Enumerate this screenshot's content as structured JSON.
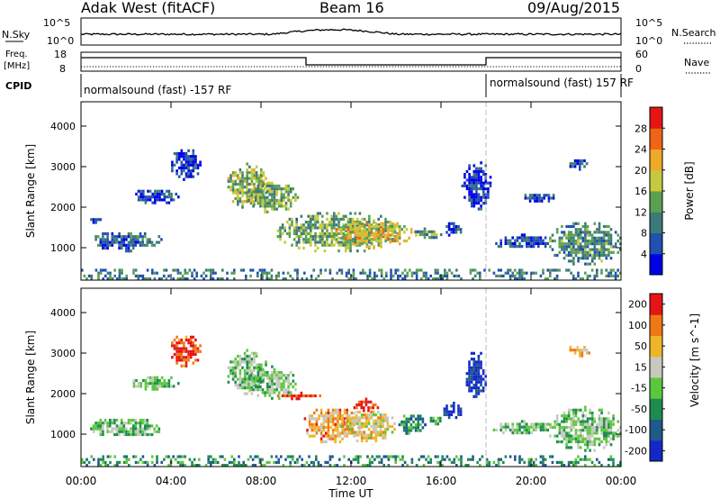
{
  "header": {
    "station": "Adak West (fitACF)",
    "beam": "Beam 16",
    "date": "09/Aug/2015"
  },
  "summary_panels": {
    "nsky_label": "N.Sky",
    "nsky_ticks": [
      "10^5",
      "10^0"
    ],
    "nsearch_label": "N.Search",
    "freq_label_1": "Freq.",
    "freq_label_2": "[MHz]",
    "freq_ticks": [
      "18",
      "8"
    ],
    "nave_label": "Nave",
    "nave_ticks": [
      "60",
      "0"
    ],
    "cpid_label": "CPID",
    "cpid_segments": [
      {
        "label": "normalsound (fast) -157 RF",
        "start_hour": 0,
        "end_hour": 18
      },
      {
        "label": "normalsound (fast) 157 RF",
        "start_hour": 18,
        "end_hour": 24
      }
    ]
  },
  "chart_data": [
    {
      "type": "heatmap",
      "name": "power",
      "ylabel": "Slant Range [km]",
      "xlabel": "Time UT",
      "xlim": [
        0,
        24
      ],
      "ylim": [
        200,
        4600
      ],
      "x_ticks": [
        "00:00",
        "04:00",
        "08:00",
        "12:00",
        "16:00",
        "20:00",
        "00:00"
      ],
      "y_ticks": [
        "1000",
        "2000",
        "3000",
        "4000"
      ],
      "colorbar": {
        "label": "Power [dB]",
        "ticks": [
          "4",
          "8",
          "12",
          "16",
          "20",
          "24",
          "28"
        ],
        "colors": [
          "#0000e6",
          "#2050b0",
          "#3c7a78",
          "#5aa050",
          "#c8c83c",
          "#f0a828",
          "#f06418",
          "#e61414"
        ]
      },
      "regions": [
        {
          "t0": 0.3,
          "t1": 3.6,
          "r0": 950,
          "r1": 1450,
          "level": 0.25
        },
        {
          "t0": 0.3,
          "t1": 0.9,
          "r0": 1650,
          "r1": 1800,
          "level": 0.15
        },
        {
          "t0": 2.2,
          "t1": 4.3,
          "r0": 2100,
          "r1": 2500,
          "level": 0.2
        },
        {
          "t0": 3.9,
          "t1": 5.3,
          "r0": 2700,
          "r1": 3500,
          "level": 0.12
        },
        {
          "t0": 6.4,
          "t1": 8.3,
          "r0": 2000,
          "r1": 3100,
          "level": 0.5
        },
        {
          "t0": 7.3,
          "t1": 9.6,
          "r0": 1900,
          "r1": 2700,
          "level": 0.45
        },
        {
          "t0": 8.6,
          "t1": 14.2,
          "r0": 900,
          "r1": 1950,
          "level": 0.42
        },
        {
          "t0": 11.1,
          "t1": 14.9,
          "r0": 1050,
          "r1": 1700,
          "level": 0.6
        },
        {
          "t0": 14.5,
          "t1": 16.0,
          "r0": 1250,
          "r1": 1500,
          "level": 0.35
        },
        {
          "t0": 16.0,
          "t1": 16.9,
          "r0": 1300,
          "r1": 1700,
          "level": 0.15
        },
        {
          "t0": 16.9,
          "t1": 18.2,
          "r0": 1950,
          "r1": 3200,
          "level": 0.12
        },
        {
          "t0": 18.2,
          "t1": 21.0,
          "r0": 1000,
          "r1": 1350,
          "level": 0.2
        },
        {
          "t0": 19.6,
          "t1": 21.1,
          "r0": 2150,
          "r1": 2400,
          "level": 0.18
        },
        {
          "t0": 20.7,
          "t1": 24.0,
          "r0": 600,
          "r1": 1700,
          "level": 0.35
        },
        {
          "t0": 21.6,
          "t1": 22.6,
          "r0": 2950,
          "r1": 3250,
          "level": 0.2
        },
        {
          "t0": 0.0,
          "t1": 24.0,
          "r0": 200,
          "r1": 480,
          "level": 0.3
        }
      ]
    },
    {
      "type": "heatmap",
      "name": "velocity",
      "ylabel": "Slant Range [km]",
      "xlabel": "Time UT",
      "xlim": [
        0,
        24
      ],
      "ylim": [
        200,
        4600
      ],
      "x_ticks": [
        "00:00",
        "04:00",
        "08:00",
        "12:00",
        "16:00",
        "20:00",
        "00:00"
      ],
      "y_ticks": [
        "1000",
        "2000",
        "3000",
        "4000"
      ],
      "colorbar": {
        "label": "Velocity [m s^-1]",
        "ticks": [
          "200",
          "100",
          "50",
          "15",
          "-15",
          "-50",
          "-100",
          "-200"
        ],
        "colors": [
          "#1428c8",
          "#1e5a8c",
          "#1e8c50",
          "#5ac83c",
          "#c8c8c0",
          "#f0b428",
          "#f07814",
          "#e61414"
        ]
      },
      "regions": [
        {
          "t0": 0.3,
          "t1": 3.6,
          "r0": 950,
          "r1": 1450,
          "level": 0.45
        },
        {
          "t0": 2.2,
          "t1": 4.3,
          "r0": 2100,
          "r1": 2500,
          "level": 0.45
        },
        {
          "t0": 3.9,
          "t1": 5.3,
          "r0": 2700,
          "r1": 3500,
          "level": 0.9
        },
        {
          "t0": 6.4,
          "t1": 8.3,
          "r0": 2000,
          "r1": 3100,
          "level": 0.45
        },
        {
          "t0": 7.3,
          "t1": 9.6,
          "r0": 1900,
          "r1": 2700,
          "level": 0.45
        },
        {
          "t0": 8.6,
          "t1": 10.8,
          "r0": 1900,
          "r1": 2050,
          "level": 0.95
        },
        {
          "t0": 9.8,
          "t1": 12.5,
          "r0": 800,
          "r1": 1700,
          "level": 0.72
        },
        {
          "t0": 11.5,
          "t1": 14.0,
          "r0": 800,
          "r1": 1650,
          "level": 0.62
        },
        {
          "t0": 12.0,
          "t1": 13.2,
          "r0": 1600,
          "r1": 1900,
          "level": 0.95
        },
        {
          "t0": 14.0,
          "t1": 15.4,
          "r0": 1000,
          "r1": 1550,
          "level": 0.28
        },
        {
          "t0": 15.4,
          "t1": 16.2,
          "r0": 1250,
          "r1": 1500,
          "level": 0.4
        },
        {
          "t0": 16.0,
          "t1": 17.0,
          "r0": 1400,
          "r1": 1800,
          "level": 0.05
        },
        {
          "t0": 17.0,
          "t1": 18.0,
          "r0": 1950,
          "r1": 3100,
          "level": 0.05
        },
        {
          "t0": 18.2,
          "t1": 21.0,
          "r0": 1000,
          "r1": 1350,
          "level": 0.45
        },
        {
          "t0": 20.7,
          "t1": 24.0,
          "r0": 600,
          "r1": 1700,
          "level": 0.45
        },
        {
          "t0": 21.6,
          "t1": 22.6,
          "r0": 2950,
          "r1": 3250,
          "level": 0.7
        },
        {
          "t0": 0.0,
          "t1": 24.0,
          "r0": 200,
          "r1": 480,
          "level": 0.3
        }
      ]
    }
  ]
}
